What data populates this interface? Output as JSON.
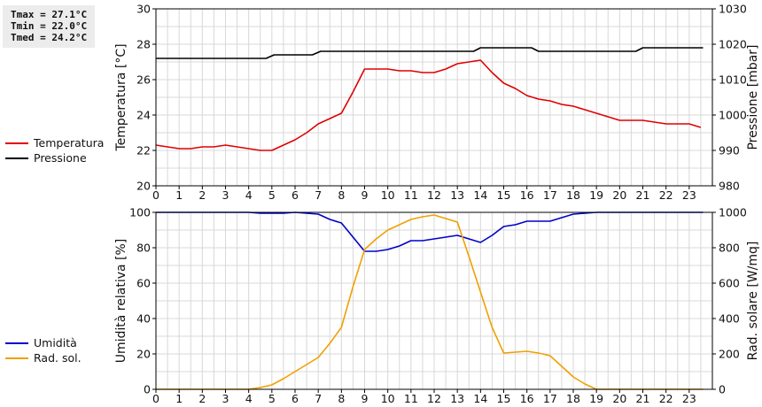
{
  "stats": {
    "tmax": "Tmax = 27.1°C",
    "tmin": "Tmin = 22.0°C",
    "tmed": "Tmed = 24.2°C"
  },
  "legend_top": [
    {
      "label": "Temperatura",
      "color": "#e00000"
    },
    {
      "label": "Pressione",
      "color": "#000000"
    }
  ],
  "legend_bottom": [
    {
      "label": "Umidità",
      "color": "#0000c8"
    },
    {
      "label": "Rad. sol.",
      "color": "#f0a000"
    }
  ],
  "chart_data": [
    {
      "type": "line",
      "xlim": [
        0,
        24
      ],
      "x_ticks": [
        0,
        1,
        2,
        3,
        4,
        5,
        6,
        7,
        8,
        9,
        10,
        11,
        12,
        13,
        14,
        15,
        16,
        17,
        18,
        19,
        20,
        21,
        22,
        23
      ],
      "y_left": {
        "label": "Temperatura [°C]",
        "range": [
          20,
          30
        ],
        "ticks": [
          20,
          22,
          24,
          26,
          28,
          30
        ]
      },
      "y_right": {
        "label": "Pressione [mbar]",
        "range": [
          980,
          1030
        ],
        "ticks": [
          980,
          990,
          1000,
          1010,
          1020,
          1030
        ]
      },
      "grid": true,
      "series": [
        {
          "name": "Temperatura",
          "axis": "left",
          "color": "#e00000",
          "points": [
            [
              0,
              22.3
            ],
            [
              0.5,
              22.2
            ],
            [
              1,
              22.1
            ],
            [
              1.5,
              22.1
            ],
            [
              2,
              22.2
            ],
            [
              2.5,
              22.2
            ],
            [
              3,
              22.3
            ],
            [
              3.5,
              22.2
            ],
            [
              4,
              22.1
            ],
            [
              4.5,
              22.0
            ],
            [
              5,
              22.0
            ],
            [
              5.5,
              22.3
            ],
            [
              6,
              22.6
            ],
            [
              6.5,
              23.0
            ],
            [
              7,
              23.5
            ],
            [
              7.5,
              23.8
            ],
            [
              8,
              24.1
            ],
            [
              8.5,
              25.3
            ],
            [
              9,
              26.6
            ],
            [
              9.5,
              26.6
            ],
            [
              10,
              26.6
            ],
            [
              10.5,
              26.5
            ],
            [
              11,
              26.5
            ],
            [
              11.5,
              26.4
            ],
            [
              12,
              26.4
            ],
            [
              12.5,
              26.6
            ],
            [
              13,
              26.9
            ],
            [
              13.5,
              27.0
            ],
            [
              14,
              27.1
            ],
            [
              14.5,
              26.4
            ],
            [
              15,
              25.8
            ],
            [
              15.5,
              25.5
            ],
            [
              16,
              25.1
            ],
            [
              16.5,
              24.9
            ],
            [
              17,
              24.8
            ],
            [
              17.5,
              24.6
            ],
            [
              18,
              24.5
            ],
            [
              18.5,
              24.3
            ],
            [
              19,
              24.1
            ],
            [
              19.5,
              23.9
            ],
            [
              20,
              23.7
            ],
            [
              20.5,
              23.7
            ],
            [
              21,
              23.7
            ],
            [
              21.5,
              23.6
            ],
            [
              22,
              23.5
            ],
            [
              22.5,
              23.5
            ],
            [
              23,
              23.5
            ],
            [
              23.5,
              23.3
            ]
          ]
        },
        {
          "name": "Pressione",
          "axis": "right",
          "color": "#000000",
          "points": [
            [
              0,
              1016
            ],
            [
              4.75,
              1016
            ],
            [
              5.1,
              1017
            ],
            [
              6.75,
              1017
            ],
            [
              7.1,
              1018
            ],
            [
              13.7,
              1018
            ],
            [
              14.0,
              1019
            ],
            [
              16.2,
              1019
            ],
            [
              16.5,
              1018
            ],
            [
              20.7,
              1018
            ],
            [
              21.0,
              1019
            ],
            [
              23.6,
              1019
            ]
          ]
        }
      ]
    },
    {
      "type": "line",
      "xlim": [
        0,
        24
      ],
      "x_ticks": [
        0,
        1,
        2,
        3,
        4,
        5,
        6,
        7,
        8,
        9,
        10,
        11,
        12,
        13,
        14,
        15,
        16,
        17,
        18,
        19,
        20,
        21,
        22,
        23
      ],
      "y_left": {
        "label": "Umidità relativa [%]",
        "range": [
          0,
          100
        ],
        "ticks": [
          0,
          20,
          40,
          60,
          80,
          100
        ]
      },
      "y_right": {
        "label": "Rad. solare [W/mq]",
        "range": [
          0,
          1000
        ],
        "ticks": [
          0,
          200,
          400,
          600,
          800,
          1000
        ]
      },
      "grid": true,
      "series": [
        {
          "name": "Umidità",
          "axis": "left",
          "color": "#0000c8",
          "points": [
            [
              0,
              100
            ],
            [
              4,
              100
            ],
            [
              4.5,
              99.5
            ],
            [
              5,
              99.5
            ],
            [
              5.5,
              99.5
            ],
            [
              6,
              100
            ],
            [
              6.5,
              99.5
            ],
            [
              7,
              99
            ],
            [
              7.5,
              96
            ],
            [
              8,
              94
            ],
            [
              8.5,
              86
            ],
            [
              9,
              78
            ],
            [
              9.5,
              78
            ],
            [
              10,
              79
            ],
            [
              10.5,
              81
            ],
            [
              11,
              84
            ],
            [
              11.5,
              84
            ],
            [
              12,
              85
            ],
            [
              12.5,
              86
            ],
            [
              13,
              87
            ],
            [
              13.5,
              85
            ],
            [
              14,
              83
            ],
            [
              14.5,
              87
            ],
            [
              15,
              92
            ],
            [
              15.5,
              93
            ],
            [
              16,
              95
            ],
            [
              16.5,
              95
            ],
            [
              17,
              95
            ],
            [
              17.5,
              97
            ],
            [
              18,
              99
            ],
            [
              18.5,
              99.5
            ],
            [
              19,
              100
            ],
            [
              23.6,
              100
            ]
          ]
        },
        {
          "name": "Rad. sol.",
          "axis": "right",
          "color": "#f0a000",
          "points": [
            [
              0,
              0
            ],
            [
              4,
              0
            ],
            [
              4.5,
              10
            ],
            [
              5,
              25
            ],
            [
              5.5,
              60
            ],
            [
              6,
              100
            ],
            [
              6.5,
              140
            ],
            [
              7,
              180
            ],
            [
              7.5,
              260
            ],
            [
              8,
              350
            ],
            [
              8.5,
              580
            ],
            [
              9,
              790
            ],
            [
              9.5,
              850
            ],
            [
              10,
              900
            ],
            [
              10.5,
              930
            ],
            [
              11,
              960
            ],
            [
              11.5,
              975
            ],
            [
              12,
              985
            ],
            [
              12.5,
              965
            ],
            [
              13,
              945
            ],
            [
              13.5,
              750
            ],
            [
              14,
              550
            ],
            [
              14.5,
              350
            ],
            [
              15,
              205
            ],
            [
              15.5,
              210
            ],
            [
              16,
              215
            ],
            [
              16.5,
              205
            ],
            [
              17,
              190
            ],
            [
              17.5,
              130
            ],
            [
              18,
              70
            ],
            [
              18.5,
              30
            ],
            [
              19,
              0
            ],
            [
              23.6,
              0
            ]
          ]
        }
      ]
    }
  ]
}
